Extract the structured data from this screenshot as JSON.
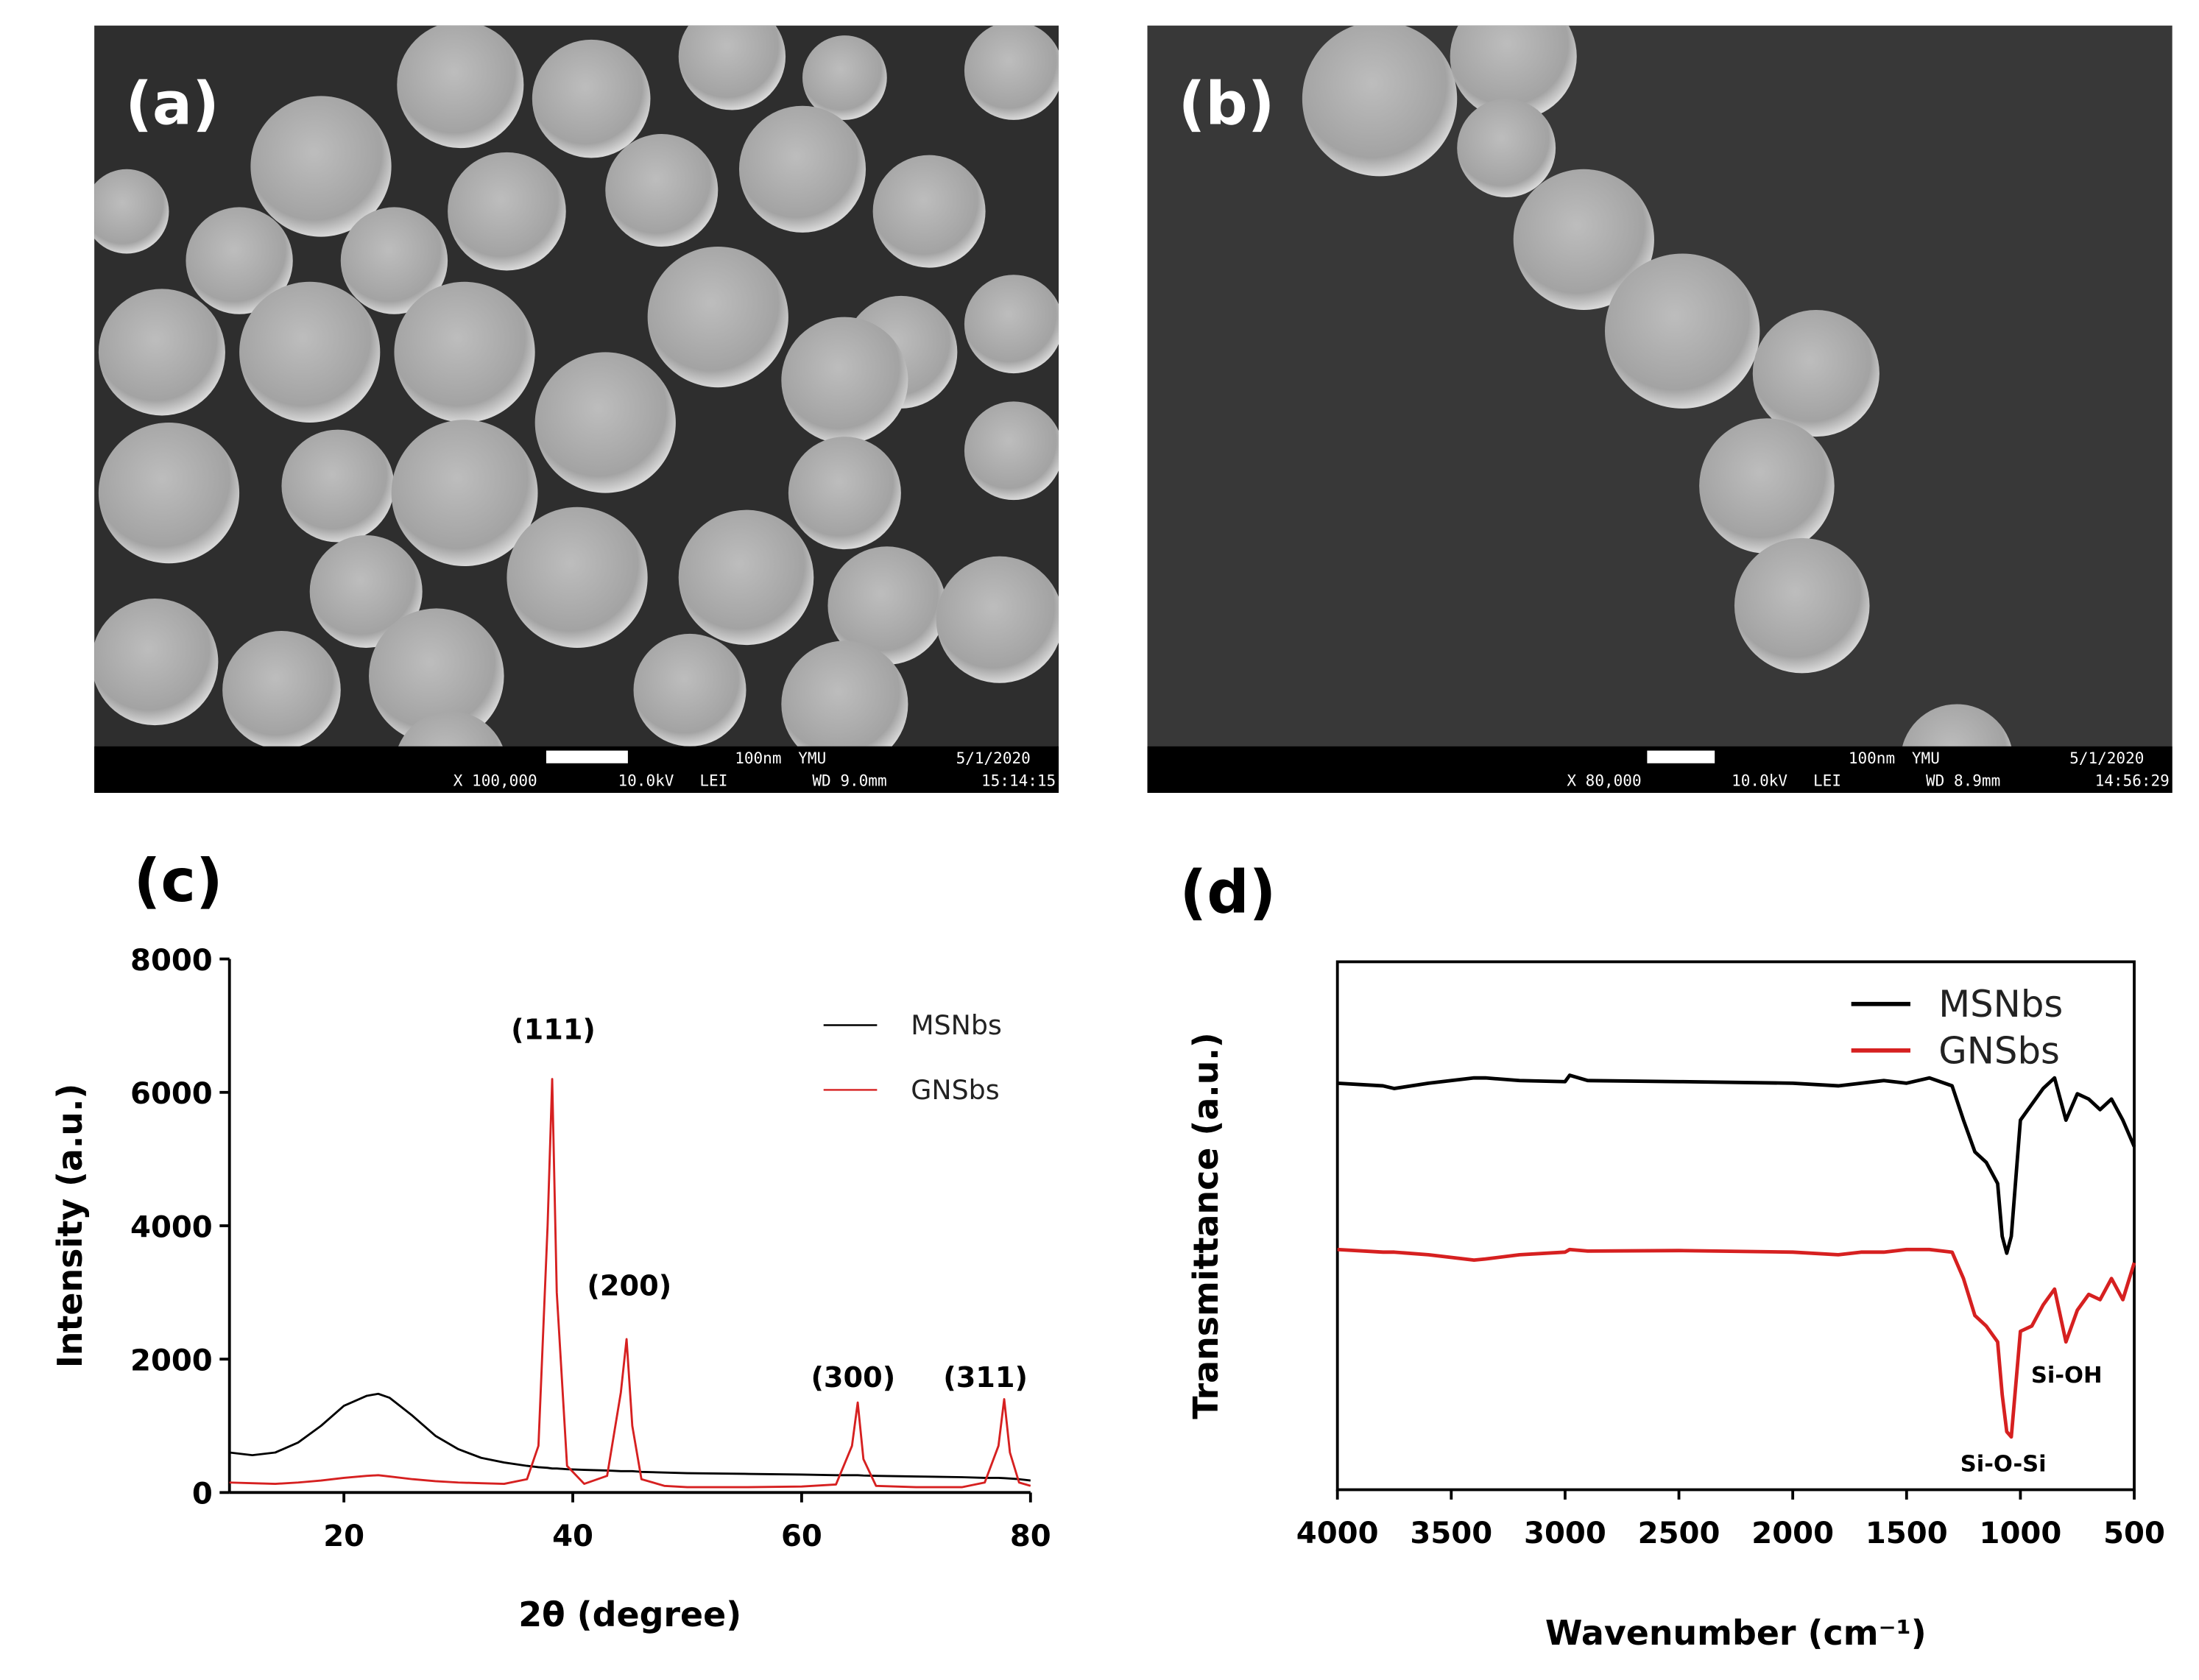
{
  "images": [
    {
      "label": "(a)",
      "scale": "100nm",
      "lab": "YMU",
      "date": "5/1/2020",
      "magnification": "X 100,000",
      "voltage": "10.0kV",
      "detector": "LEI",
      "wd": "WD 9.0mm",
      "time": "15:14:15"
    },
    {
      "label": "(b)",
      "scale": "100nm",
      "lab": "YMU",
      "date": "5/1/2020",
      "magnification": "X 80,000",
      "voltage": "10.0kV",
      "detector": "LEI",
      "wd": "WD 8.9mm",
      "time": "14:56:29"
    }
  ],
  "chart_data": [
    {
      "type": "line",
      "panel_label": "(c)",
      "x_label": "2θ (degree)",
      "y_label": "Intensity (a.u.)",
      "x": [
        10,
        12,
        14,
        16,
        18,
        20,
        22,
        23,
        24,
        26,
        28,
        30,
        32,
        34,
        36,
        37,
        37.8,
        38.2,
        38.6,
        39.5,
        41,
        43,
        44.2,
        44.7,
        45.2,
        46,
        48,
        50,
        55,
        60,
        63,
        64.4,
        64.9,
        65.4,
        66.5,
        70,
        74,
        76,
        77.2,
        77.7,
        78.2,
        79,
        80
      ],
      "series": [
        {
          "name": "MSNbs",
          "color": "#000000",
          "values": [
            600,
            560,
            600,
            750,
            1000,
            1300,
            1450,
            1480,
            1420,
            1150,
            850,
            650,
            520,
            450,
            400,
            380,
            370,
            360,
            360,
            350,
            340,
            330,
            320,
            320,
            320,
            310,
            300,
            290,
            280,
            270,
            260,
            260,
            260,
            255,
            250,
            240,
            230,
            220,
            220,
            215,
            210,
            200,
            180
          ]
        },
        {
          "name": "GNSbs",
          "color": "#d62020",
          "values": [
            150,
            140,
            130,
            150,
            180,
            220,
            250,
            260,
            240,
            200,
            170,
            150,
            140,
            130,
            200,
            700,
            4000,
            6200,
            3000,
            400,
            130,
            250,
            1500,
            2300,
            1000,
            200,
            100,
            80,
            80,
            90,
            120,
            700,
            1350,
            500,
            100,
            80,
            80,
            150,
            700,
            1400,
            600,
            150,
            100
          ]
        }
      ],
      "annotations": [
        "(111)",
        "(200)",
        "(300)",
        "(311)"
      ],
      "xlim": [
        10,
        80
      ],
      "ylim": [
        0,
        8000
      ],
      "xticks": [
        20,
        40,
        60,
        80
      ],
      "yticks": [
        0,
        2000,
        4000,
        6000,
        8000
      ],
      "legend": "top-right"
    },
    {
      "type": "line",
      "panel_label": "(d)",
      "x_label": "Wavenumber (cm⁻¹)",
      "y_label": "Transmittance (a.u.)",
      "x": [
        4000,
        3800,
        3750,
        3600,
        3400,
        3350,
        3200,
        3000,
        2980,
        2900,
        2500,
        2000,
        1800,
        1700,
        1600,
        1500,
        1400,
        1300,
        1250,
        1200,
        1150,
        1100,
        1080,
        1060,
        1040,
        1000,
        950,
        900,
        850,
        800,
        750,
        700,
        650,
        600,
        550,
        500
      ],
      "series": [
        {
          "name": "MSNbs",
          "color": "#000000",
          "values": [
            77,
            76.5,
            76,
            77,
            78,
            78,
            77.5,
            77.3,
            78.5,
            77.5,
            77.3,
            77,
            76.5,
            77,
            77.5,
            77,
            78,
            76.5,
            70,
            64,
            62,
            58,
            48,
            44.8,
            48,
            70,
            73,
            76,
            78,
            70,
            75,
            74,
            72,
            74,
            70,
            65
          ]
        },
        {
          "name": "GNSbs",
          "color": "#d62020",
          "values": [
            45.5,
            45,
            45,
            44.5,
            43.5,
            43.7,
            44.5,
            45,
            45.5,
            45.2,
            45.3,
            45,
            44.5,
            45,
            45,
            45.5,
            45.5,
            45,
            40,
            33,
            31,
            28,
            18,
            11,
            10,
            30,
            31,
            35,
            38,
            28,
            34,
            37,
            36,
            40,
            36,
            43
          ]
        }
      ],
      "annotations": [
        "Si-OH",
        "Si-O-Si"
      ],
      "xlim": [
        4000,
        500
      ],
      "ylim": [
        0,
        100
      ],
      "xticks": [
        4000,
        3500,
        3000,
        2500,
        2000,
        1500,
        1000,
        500
      ],
      "legend": "top-right"
    }
  ]
}
